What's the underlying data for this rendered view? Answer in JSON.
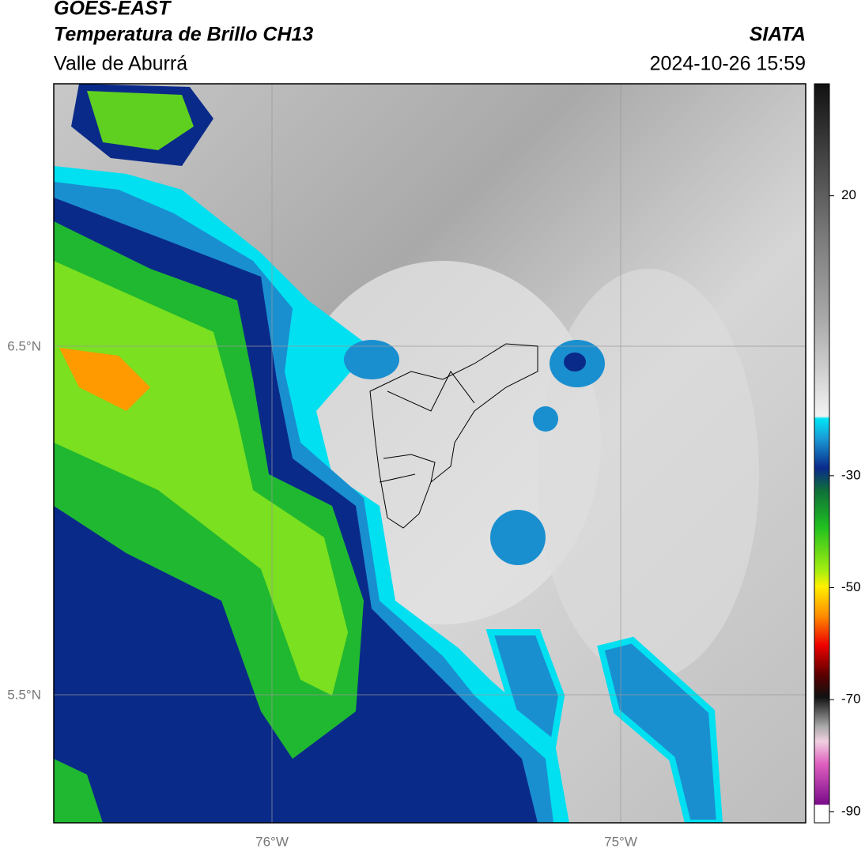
{
  "header": {
    "title": "GOES-EAST",
    "subtitle": "Temperatura de Brillo CH13",
    "region": "Valle de Aburrá",
    "source": "SIATA",
    "timestamp": "2024-10-26 15:59"
  },
  "map": {
    "lat_labels": [
      "6.5°N",
      "5.5°N"
    ],
    "lon_labels": [
      "76°W",
      "75°W"
    ]
  },
  "colorbar": {
    "lim": [
      -92,
      40
    ],
    "ticks": [
      20,
      -30,
      -50,
      -70,
      -90
    ]
  }
}
